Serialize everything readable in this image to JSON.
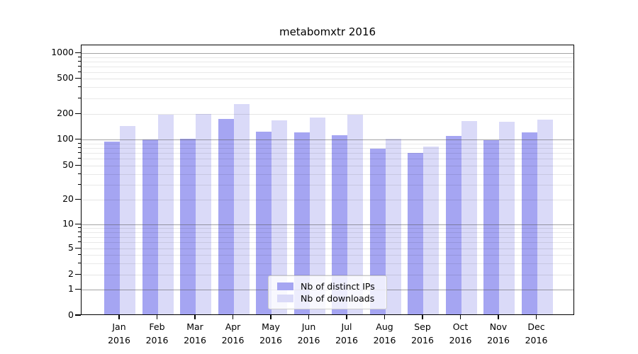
{
  "title": "metabomxtr 2016",
  "chart_data": {
    "type": "bar",
    "title": "metabomxtr 2016",
    "categories": [
      "Jan 2016",
      "Feb 2016",
      "Mar 2016",
      "Apr 2016",
      "May 2016",
      "Jun 2016",
      "Jul 2016",
      "Aug 2016",
      "Sep 2016",
      "Oct 2016",
      "Nov 2016",
      "Dec 2016"
    ],
    "series": [
      {
        "name": "Nb of distinct IPs",
        "color": "#a5a5f2",
        "values": [
          92,
          97,
          100,
          170,
          121,
          117,
          110,
          77,
          68,
          108,
          96,
          117
        ]
      },
      {
        "name": "Nb of downloads",
        "color": "#dadaf8",
        "values": [
          141,
          192,
          196,
          254,
          165,
          178,
          189,
          100,
          81,
          160,
          156,
          168
        ]
      }
    ],
    "ylabel": "",
    "xlabel": "",
    "yscale": "pseudo-log",
    "y_tick_labels": [
      "0",
      "1",
      "2",
      "5",
      "10",
      "20",
      "50",
      "100",
      "200",
      "500",
      "1000"
    ],
    "y_ticks": [
      0,
      1,
      2,
      5,
      10,
      20,
      50,
      100,
      200,
      500,
      1000
    ],
    "ylim": [
      0,
      1300
    ],
    "grid": true,
    "legend_position": "lower center"
  }
}
